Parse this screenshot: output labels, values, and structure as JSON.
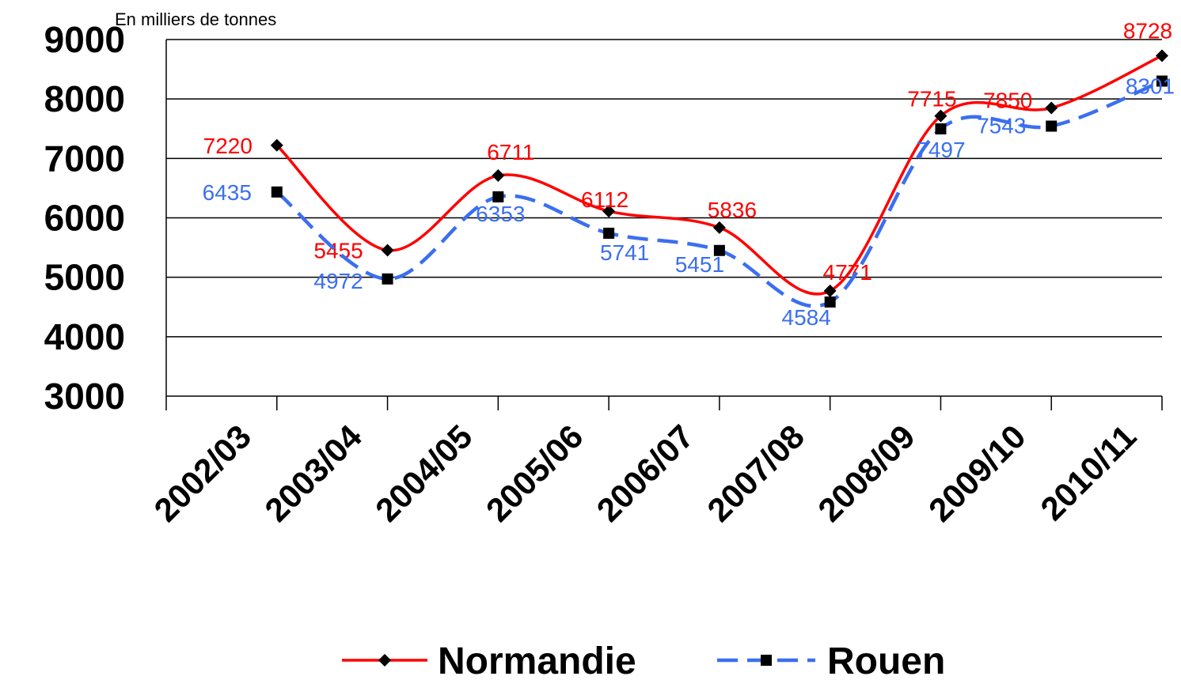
{
  "chart_data": {
    "type": "line",
    "unit_label": "En milliers de tonnes",
    "categories": [
      "2002/03",
      "2003/04",
      "2004/05",
      "2005/06",
      "2006/07",
      "2007/08",
      "2008/09",
      "2009/10",
      "2010/11"
    ],
    "series": [
      {
        "name": "Normandie",
        "color": "#ff0000",
        "values": [
          7220,
          5455,
          6711,
          6112,
          5836,
          4771,
          7715,
          7850,
          8728
        ]
      },
      {
        "name": "Rouen",
        "color": "#3b6ff0",
        "values": [
          6435,
          4972,
          6353,
          5741,
          5451,
          4584,
          7497,
          7543,
          8301
        ]
      }
    ],
    "ylim": [
      3000,
      9000
    ],
    "yticks": [
      3000,
      4000,
      5000,
      6000,
      7000,
      8000,
      9000
    ],
    "grid": true,
    "legend": "bottom"
  }
}
